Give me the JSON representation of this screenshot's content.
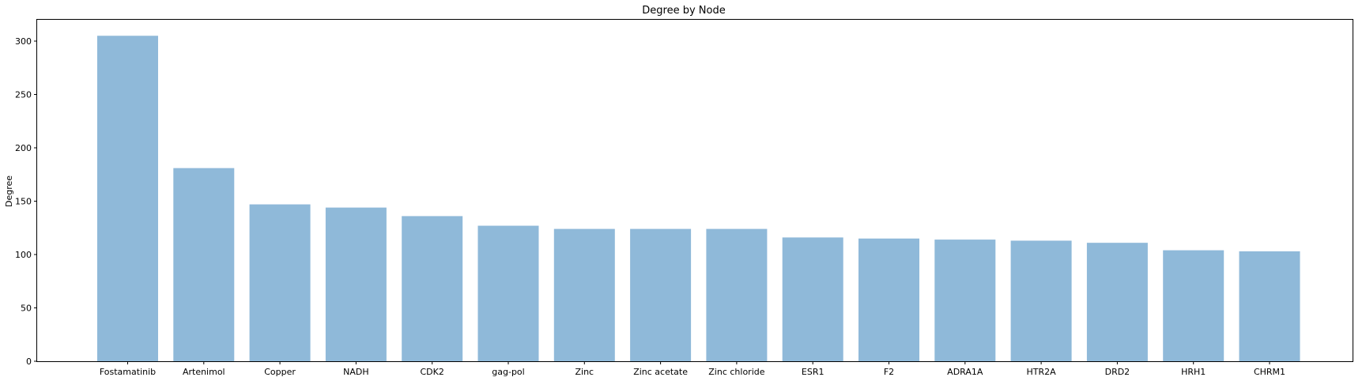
{
  "chart_data": {
    "type": "bar",
    "title": "Degree by Node",
    "xlabel": "",
    "ylabel": "Degree",
    "categories": [
      "Fostamatinib",
      "Artenimol",
      "Copper",
      "NADH",
      "CDK2",
      "gag-pol",
      "Zinc",
      "Zinc acetate",
      "Zinc chloride",
      "ESR1",
      "F2",
      "ADRA1A",
      "HTR2A",
      "DRD2",
      "HRH1",
      "CHRM1"
    ],
    "values": [
      305,
      181,
      147,
      144,
      136,
      127,
      124,
      124,
      124,
      116,
      115,
      114,
      113,
      111,
      104,
      103
    ],
    "ylim": [
      0,
      320
    ],
    "yticks": [
      0,
      50,
      100,
      150,
      200,
      250,
      300
    ],
    "bar_color": "#8fb9d9",
    "grid": false,
    "legend": "none"
  }
}
